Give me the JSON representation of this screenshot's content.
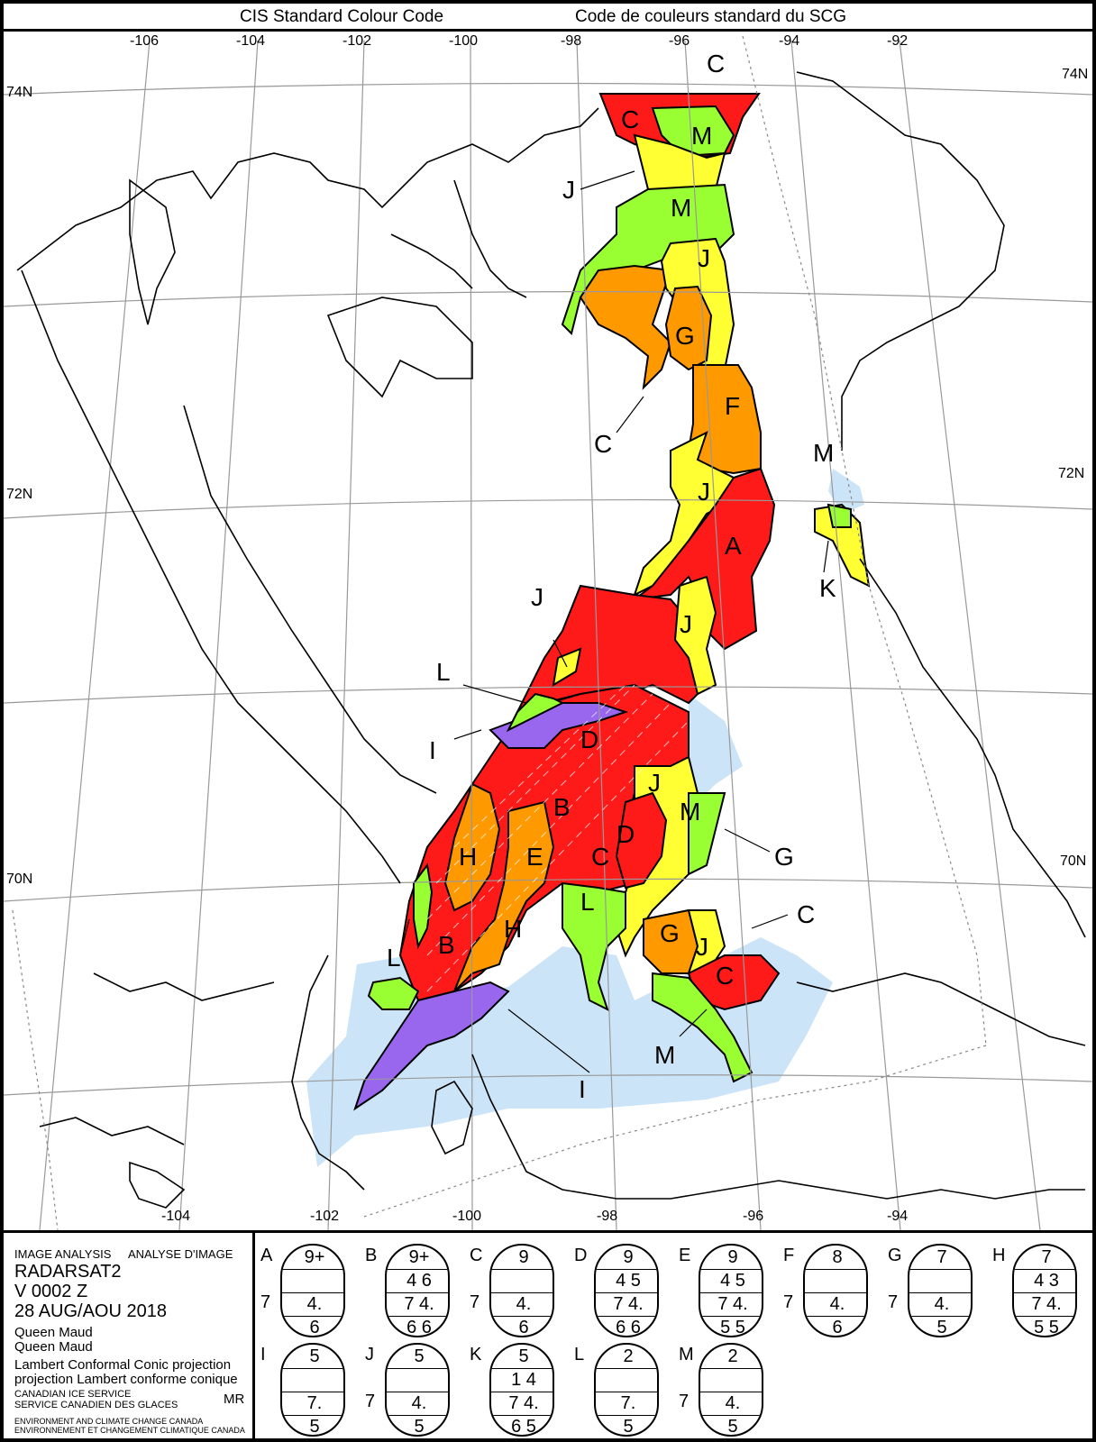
{
  "header": {
    "left_title": "CIS Standard Colour Code",
    "right_title": "Code de couleurs standard du SCG"
  },
  "map": {
    "longitude_labels_top": [
      "-106",
      "-104",
      "-102",
      "-100",
      "-98",
      "-96",
      "-94",
      "-92"
    ],
    "longitude_labels_bottom": [
      "-104",
      "-102",
      "-100",
      "-98",
      "-96",
      "-94"
    ],
    "latitude_labels": [
      "74N",
      "72N",
      "70N"
    ],
    "region_labels": [
      "A",
      "B",
      "C",
      "D",
      "E",
      "F",
      "G",
      "H",
      "I",
      "J",
      "K",
      "L",
      "M"
    ],
    "colors": {
      "red": "#ff1a1a",
      "orange": "#ff9900",
      "yellow": "#ffff33",
      "green": "#99ff33",
      "purple": "#9966ee",
      "light_blue": "#cce4f7",
      "land": "#ffffff",
      "graticule": "#999999"
    }
  },
  "info": {
    "line1_left": "IMAGE ANALYSIS",
    "line1_right": "ANALYSE D'IMAGE",
    "sensor": "RADARSAT2",
    "version": "V 0002 Z",
    "date": "28 AUG/AOU 2018",
    "region_en": "Queen Maud",
    "region_fr": "Queen Maud",
    "projection_en": "Lambert Conformal Conic projection",
    "projection_fr": "projection Lambert conforme conique",
    "agency_en": "CANADIAN ICE SERVICE",
    "agency_fr": "SERVICE CANADIEN DES GLACES",
    "analyst": "MR",
    "dept_en": "ENVIRONMENT AND CLIMATE CHANGE CANADA",
    "dept_fr": "ENVIRONNEMENT ET CHANGEMENT CLIMATIQUE CANADA"
  },
  "legend": [
    {
      "label": "A",
      "total": "9+",
      "partial": "",
      "stage": "4.",
      "form": "6",
      "side": "7"
    },
    {
      "label": "B",
      "total": "9+",
      "partial": "4 6",
      "stage": "7 4.",
      "form": "6 6",
      "side": ""
    },
    {
      "label": "C",
      "total": "9",
      "partial": "",
      "stage": "4.",
      "form": "6",
      "side": "7"
    },
    {
      "label": "D",
      "total": "9",
      "partial": "4 5",
      "stage": "7 4.",
      "form": "6 6",
      "side": ""
    },
    {
      "label": "E",
      "total": "9",
      "partial": "4 5",
      "stage": "7 4.",
      "form": "5 5",
      "side": ""
    },
    {
      "label": "F",
      "total": "8",
      "partial": "",
      "stage": "4.",
      "form": "6",
      "side": "7"
    },
    {
      "label": "G",
      "total": "7",
      "partial": "",
      "stage": "4.",
      "form": "5",
      "side": "7"
    },
    {
      "label": "H",
      "total": "7",
      "partial": "4 3",
      "stage": "7 4.",
      "form": "5 5",
      "side": ""
    },
    {
      "label": "I",
      "total": "5",
      "partial": "",
      "stage": "7.",
      "form": "5",
      "side": ""
    },
    {
      "label": "J",
      "total": "5",
      "partial": "",
      "stage": "4.",
      "form": "5",
      "side": "7"
    },
    {
      "label": "K",
      "total": "5",
      "partial": "1 4",
      "stage": "7 4.",
      "form": "6 5",
      "side": ""
    },
    {
      "label": "L",
      "total": "2",
      "partial": "",
      "stage": "7.",
      "form": "5",
      "side": ""
    },
    {
      "label": "M",
      "total": "2",
      "partial": "",
      "stage": "4.",
      "form": "5",
      "side": "7"
    }
  ]
}
